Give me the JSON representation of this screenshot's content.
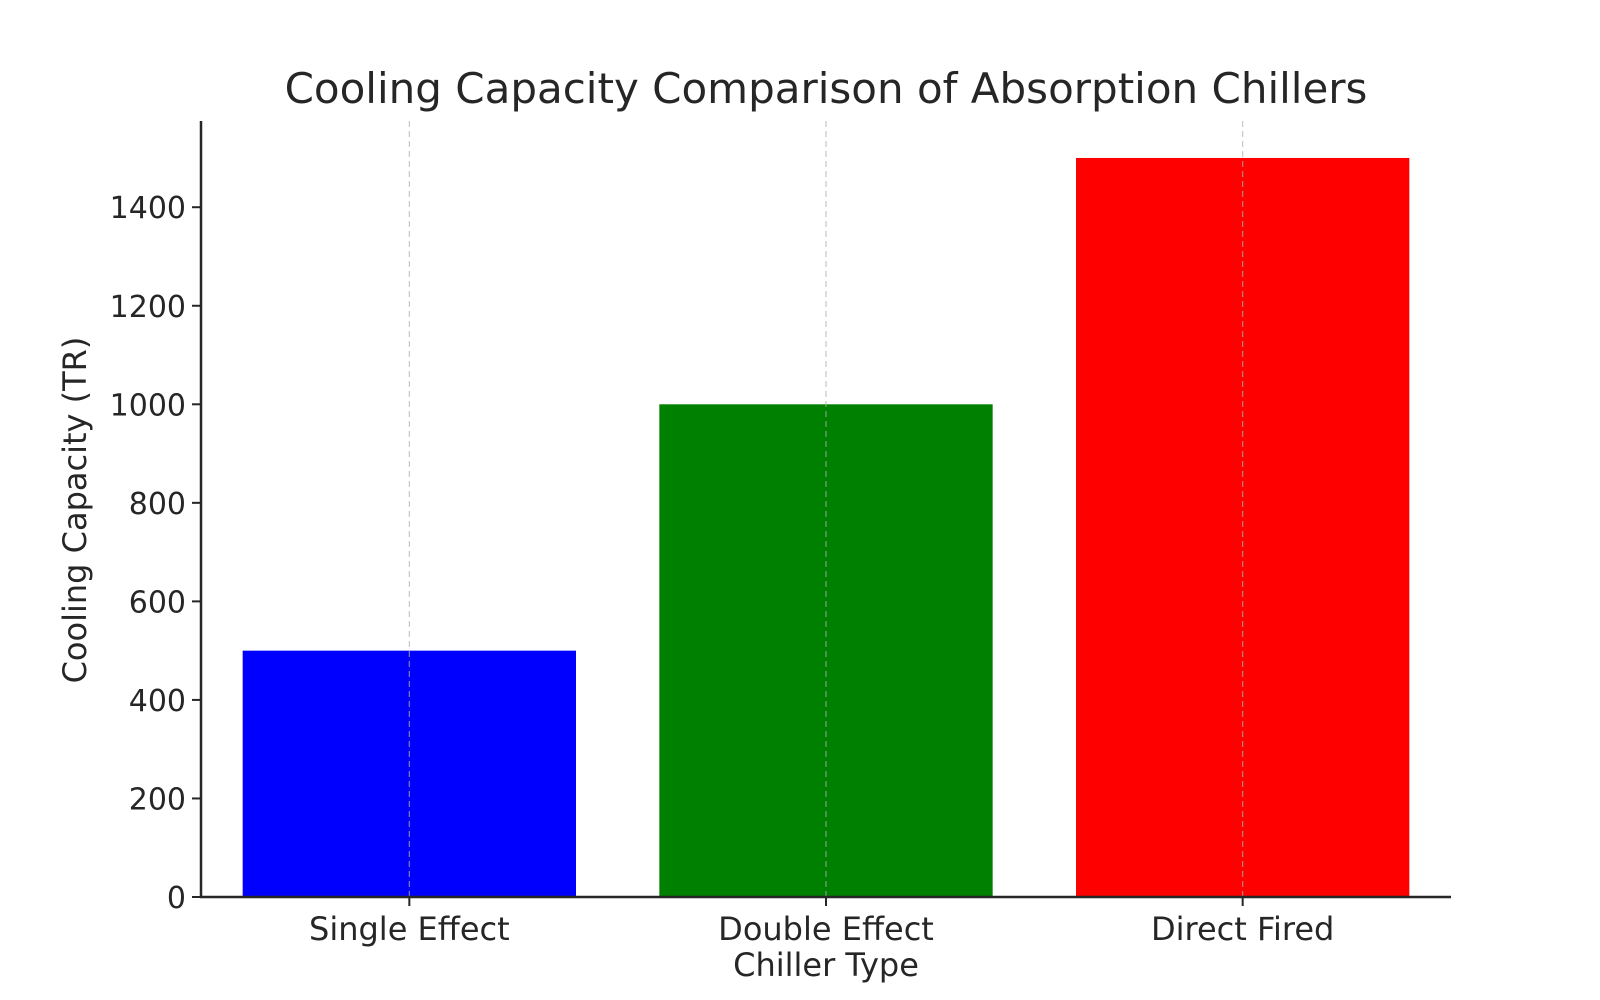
{
  "chart_data": {
    "type": "bar",
    "title": "Cooling Capacity Comparison of Absorption Chillers",
    "xlabel": "Chiller Type",
    "ylabel": "Cooling Capacity (TR)",
    "categories": [
      "Single Effect",
      "Double Effect",
      "Direct Fired"
    ],
    "values": [
      500,
      1000,
      1500
    ],
    "colors": [
      "#0000ff",
      "#008000",
      "#ff0000"
    ],
    "ylim": [
      0,
      1575
    ],
    "yticks": [
      0,
      200,
      400,
      600,
      800,
      1000,
      1200,
      1400
    ],
    "grid": "vertical-dashed",
    "legend": "none"
  }
}
